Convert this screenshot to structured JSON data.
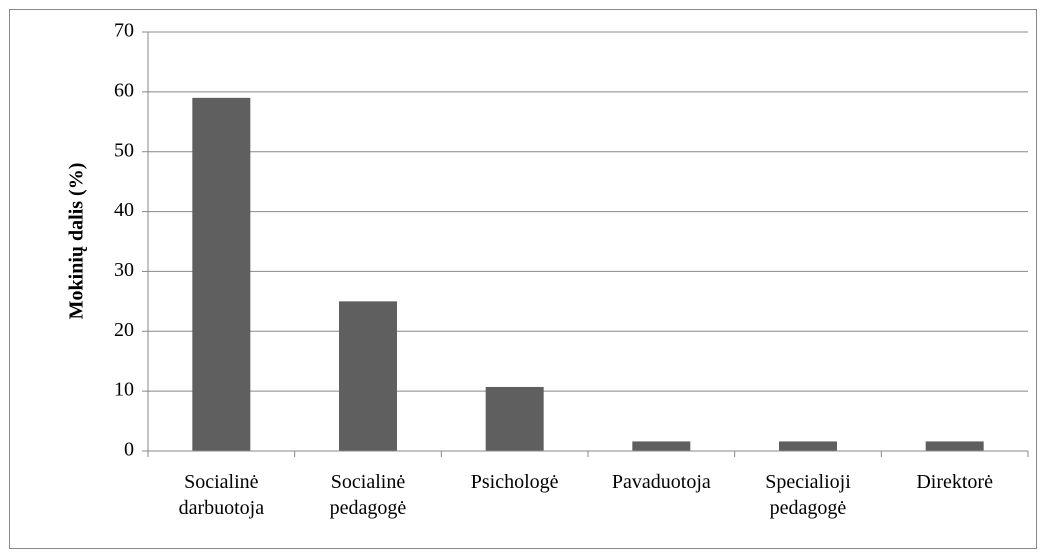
{
  "chart_data": {
    "type": "bar",
    "y_label": "Mokinių dalis (%)",
    "categories": [
      "Socialinė darbuotoja",
      "Socialinė pedagogė",
      "Psichologė",
      "Pavaduotoja",
      "Specialioji pedagogė",
      "Direktorė"
    ],
    "values": [
      59,
      25,
      10.7,
      1.6,
      1.6,
      1.6
    ],
    "color": "#5f5f5f",
    "ylim": [
      0,
      70
    ],
    "yticks": [
      0,
      10,
      20,
      30,
      40,
      50,
      60,
      70
    ],
    "grid": true
  }
}
